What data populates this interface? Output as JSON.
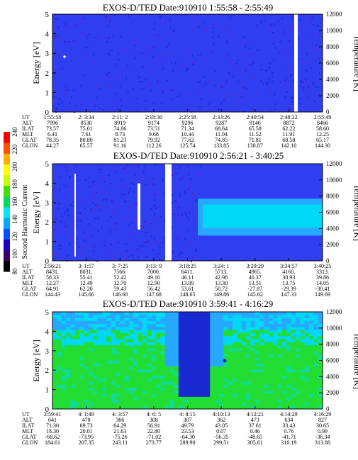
{
  "colorbar": {
    "label": "Second Harmonic Current",
    "ticks": [
      "80",
      "100",
      "120",
      "140",
      "160",
      "180",
      "200",
      "220",
      "240"
    ],
    "colors": [
      "#000000",
      "#3a0066",
      "#1d00c8",
      "#0050ff",
      "#00a8ff",
      "#00e8e8",
      "#00d860",
      "#40e000",
      "#c8ff00",
      "#ffff00",
      "#ffb000",
      "#ff5000",
      "#ff0000"
    ]
  },
  "panel_colors": {
    "background_dark": "#1a28d2",
    "background_mid": "#2e3ef0",
    "speckle": "#5b2bd0",
    "green": "#22dd33",
    "cyan": "#00d8f8",
    "light_blue": "#26a8ff",
    "gap": "#ffffff"
  },
  "chart_data": [
    {
      "type": "heatmap",
      "title": "EXOS-D/TED  Date:910910  1:55:58 - 2:55:49",
      "ylabel": "Energy [eV]",
      "y2label": "Temperature [K]",
      "ylim": [
        0,
        5
      ],
      "y2lim": [
        0,
        12000
      ],
      "yticks": [
        "0",
        "1",
        "2",
        "3",
        "4",
        "5"
      ],
      "y2ticks": [
        "0",
        "2000",
        "4000",
        "6000",
        "8000",
        "10000",
        "12000"
      ],
      "x": [
        "1:55:58",
        "2: 3:34",
        "2:11: 2",
        "2:18:30",
        "2:25:58",
        "2:33:26",
        "2:40:54",
        "2:48:22",
        "2:55:49"
      ],
      "rows": [
        {
          "name": "UT",
          "values": [
            "1:55:58",
            "2: 3:34",
            "2:11: 2",
            "2:18:30",
            "2:25:58",
            "2:33:26",
            "2:40:54",
            "2:48:22",
            "2:55:49"
          ]
        },
        {
          "name": "ALT",
          "values": [
            "7996",
            "8530",
            "8919",
            "9174",
            "9296",
            "9287",
            "9146",
            "8872",
            "8466"
          ]
        },
        {
          "name": "ILAT",
          "values": [
            "73.57",
            "75.01",
            "74.86",
            "73.51",
            "71.34",
            "68.64",
            "65.58",
            "62.22",
            "58.60"
          ]
        },
        {
          "name": "MLT",
          "values": [
            "6.41",
            "7.61",
            "8.73",
            "9.68",
            "10.44",
            "11.04",
            "11.52",
            "11.91",
            "12.25"
          ]
        },
        {
          "name": "GLAT",
          "values": [
            "78.35",
            "80.80",
            "81.23",
            "79.92",
            "77.62",
            "74.85",
            "71.81",
            "68.58",
            "65.17"
          ]
        },
        {
          "name": "GLON",
          "values": [
            "44.27",
            "65.57",
            "91.16",
            "112.26",
            "125.74",
            "133.85",
            "138.87",
            "142.10",
            "144.30"
          ]
        }
      ]
    },
    {
      "type": "heatmap",
      "title": "EXOS-D/TED  Date:910910  2:56:21 - 3:40:25",
      "ylabel": "Energy [eV]",
      "y2label": "Temperature [K]",
      "ylim": [
        0,
        5
      ],
      "y2lim": [
        0,
        12000
      ],
      "yticks": [
        "0",
        "1",
        "2",
        "3",
        "4",
        "5"
      ],
      "y2ticks": [
        "0",
        "2000",
        "4000",
        "6000",
        "8000",
        "10000",
        "12000"
      ],
      "x": [
        "2:56:21",
        "3: 1:57",
        "3: 7:25",
        "3:13: 9",
        "3:18:25",
        "3:24: 1",
        "3:29:29",
        "3:34:57",
        "3:40:25"
      ],
      "rows": [
        {
          "name": "UT",
          "values": [
            "2:56:21",
            "3: 1:57",
            "3: 7:25",
            "3:13: 9",
            "3:18:25",
            "3:24: 1",
            "3:29:29",
            "3:34:57",
            "3:40:25"
          ]
        },
        {
          "name": "ALT",
          "values": [
            "8431.",
            "8031.",
            "7566.",
            "7000.",
            "6411.",
            "5713.",
            "4965.",
            "4160.",
            "3313."
          ]
        },
        {
          "name": "ILAT",
          "values": [
            "58.33",
            "55.41",
            "52.42",
            "49.16",
            "46.11",
            "42.98",
            "40.37",
            "38.93",
            "39.86"
          ]
        },
        {
          "name": "MLT",
          "values": [
            "12.27",
            "12.49",
            "12.70",
            "12.90",
            "13.09",
            "13.30",
            "13.51",
            "13.75",
            "14.05"
          ]
        },
        {
          "name": "GLAT",
          "values": [
            "64.91",
            "62.20",
            "59.43",
            "56.42",
            "53.61",
            "50.72",
            "-27.87",
            "-29.39",
            "-30.41"
          ]
        },
        {
          "name": "GLON",
          "values": [
            "144.43",
            "145.66",
            "146.68",
            "147.68",
            "148.65",
            "149.86",
            "145.62",
            "147.33",
            "149.69"
          ]
        }
      ]
    },
    {
      "type": "heatmap",
      "title": "EXOS-D/TED  Date:910910  3:59:41 - 4:16:29",
      "ylabel": "Energy [eV]",
      "y2label": "Temperature [K]",
      "ylim": [
        0,
        5
      ],
      "y2lim": [
        0,
        12000
      ],
      "yticks": [
        "0",
        "1",
        "2",
        "3",
        "4",
        "5"
      ],
      "y2ticks": [
        "0",
        "2000",
        "4000",
        "6000",
        "8000",
        "10000",
        "12000"
      ],
      "x": [
        "3:59:41",
        "4: 1:49",
        "4: 3:57",
        "4: 6: 5",
        "4: 8:15",
        "4:10:13",
        "4:12:21",
        "4:14:29",
        "4:16:29"
      ],
      "rows": [
        {
          "name": "UT",
          "values": [
            "3:59:41",
            "4: 1:49",
            "4: 3:57",
            "4: 6: 5",
            "4: 8:15",
            "4:10:13",
            "4:12:21",
            "4:14:29",
            "4:16:29"
          ]
        },
        {
          "name": "ALT",
          "values": [
            "641",
            "478",
            "366",
            "308",
            "307",
            "362",
            "473",
            "634",
            "827"
          ]
        },
        {
          "name": "ILAT",
          "values": [
            "71.30",
            "69.73",
            "64.29",
            "56.91",
            "49.79",
            "43.05",
            "37.61",
            "33.43",
            "30.65"
          ]
        },
        {
          "name": "MLT",
          "values": [
            "18.30",
            "20.01",
            "21.63",
            "22.80",
            "23.53",
            "0.07",
            "0.46",
            "0.76",
            "0.99"
          ]
        },
        {
          "name": "GLAT",
          "values": [
            "-68.62",
            "-73.95",
            "-75.26",
            "-71.02",
            "-64.30",
            "-56.35",
            "-48.65",
            "-41.71",
            "-36.34"
          ]
        },
        {
          "name": "GLON",
          "values": [
            "184.61",
            "207.35",
            "243.11",
            "273.77",
            "289.90",
            "299.51",
            "305.61",
            "310.19",
            "313.88"
          ]
        }
      ]
    }
  ]
}
